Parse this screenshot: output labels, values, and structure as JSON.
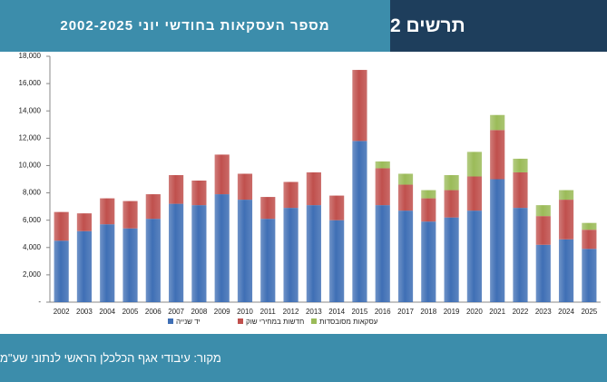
{
  "header": {
    "title": "מספר העסקאות בחודשי יוני 2002-2025",
    "figure_label": "תרשים 2"
  },
  "footer": {
    "source": "מקור: עיבודי אגף הכלכלן הראשי לנתוני שע\"מ"
  },
  "chart_data": {
    "type": "stacked_bar",
    "categories": [
      "2002",
      "2003",
      "2004",
      "2005",
      "2006",
      "2007",
      "2008",
      "2009",
      "2010",
      "2011",
      "2012",
      "2013",
      "2014",
      "2015",
      "2016",
      "2017",
      "2018",
      "2019",
      "2020",
      "2021",
      "2022",
      "2023",
      "2024",
      "2025"
    ],
    "series": [
      {
        "name": "יד שנייה",
        "color": "#3f6fb5",
        "values": [
          4500,
          5200,
          5700,
          5400,
          6100,
          7200,
          7100,
          7900,
          7500,
          6100,
          6900,
          7100,
          6000,
          11800,
          7100,
          6700,
          5900,
          6200,
          6700,
          9000,
          6900,
          4200,
          4600,
          3900
        ]
      },
      {
        "name": "חדשות במחירי שוק",
        "color": "#c0504d",
        "values": [
          2100,
          1300,
          1900,
          2000,
          1800,
          2100,
          1800,
          2900,
          1900,
          1600,
          1900,
          2400,
          1800,
          5200,
          2700,
          1900,
          1700,
          2000,
          2500,
          3600,
          2600,
          2100,
          2900,
          1400
        ]
      },
      {
        "name": "עסקאות מסובסדות",
        "color": "#9bbb59",
        "values": [
          null,
          null,
          null,
          null,
          null,
          null,
          null,
          null,
          null,
          null,
          null,
          null,
          null,
          null,
          500,
          800,
          600,
          1100,
          1800,
          1100,
          1000,
          800,
          700,
          500
        ]
      }
    ],
    "ylim": [
      0,
      18000
    ],
    "yticks": [
      {
        "value": 0,
        "label": "-"
      },
      {
        "value": 2000,
        "label": "2,000"
      },
      {
        "value": 4000,
        "label": "4,000"
      },
      {
        "value": 6000,
        "label": "6,000"
      },
      {
        "value": 8000,
        "label": "8,000"
      },
      {
        "value": 10000,
        "label": "10,000"
      },
      {
        "value": 12000,
        "label": "12,000"
      },
      {
        "value": 14000,
        "label": "14,000"
      },
      {
        "value": 16000,
        "label": "16,000"
      },
      {
        "value": 18000,
        "label": "18,000"
      }
    ],
    "grid": false,
    "legend": "bottom"
  }
}
